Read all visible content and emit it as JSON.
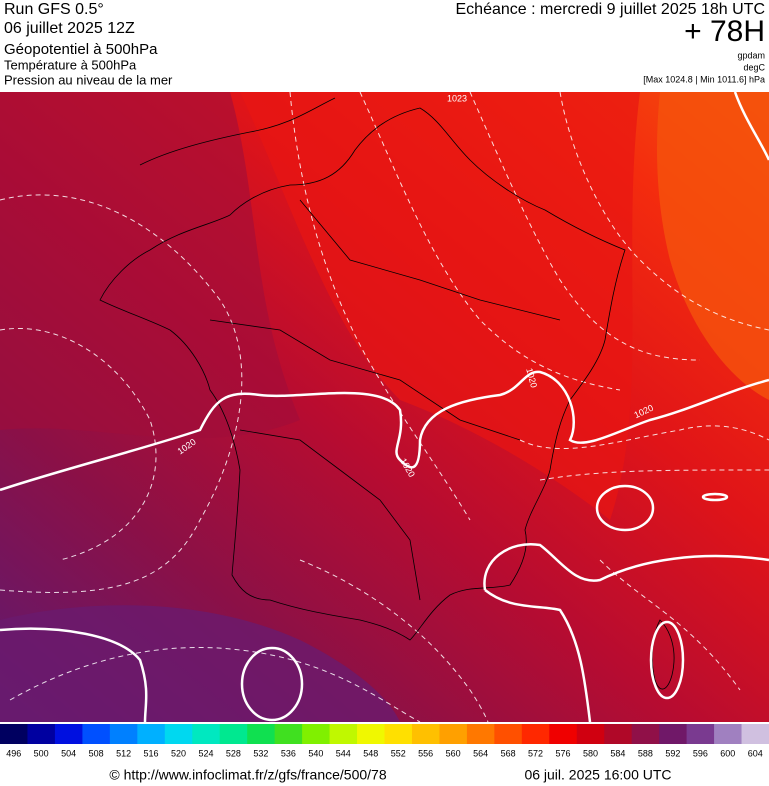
{
  "header": {
    "run": "Run GFS 0.5°",
    "date": "06 juillet 2025 12Z",
    "field_main": "Géopotentiel à 500hPa",
    "field_temp": "Température à 500hPa",
    "field_pressure": "Pression au niveau de la mer",
    "echeance": "Echéance : mercredi 9 juillet 2025 18h UTC",
    "lead": "+ 78H",
    "unit_geo": "gpdam",
    "unit_temp": "degC",
    "pressure_range": "[Max 1024.8 | Min 1011.6] hPa"
  },
  "map": {
    "isobar_labels": [
      "1023",
      "1020",
      "1020",
      "1020",
      "1020"
    ]
  },
  "legend": {
    "levels": [
      496,
      500,
      504,
      508,
      512,
      516,
      520,
      524,
      528,
      532,
      536,
      540,
      544,
      548,
      552,
      556,
      560,
      564,
      568,
      572,
      576,
      580,
      584,
      588,
      592,
      596,
      600,
      604
    ],
    "colors": [
      "#000060",
      "#0000a0",
      "#0010e0",
      "#0050ff",
      "#0080ff",
      "#00b0ff",
      "#00d8f0",
      "#00e8c0",
      "#00e890",
      "#10e050",
      "#40e020",
      "#80f000",
      "#c0f800",
      "#f0f800",
      "#ffe000",
      "#ffc000",
      "#ffa000",
      "#ff7800",
      "#ff5000",
      "#ff2800",
      "#f00000",
      "#d00010",
      "#b00828",
      "#901048",
      "#701868",
      "#7a3a90",
      "#a080c0",
      "#d0c0e0"
    ]
  },
  "footer": {
    "url": "© http://www.infoclimat.fr/z/gfs/france/500/78",
    "timestamp": "06 juil. 2025 16:00 UTC"
  }
}
